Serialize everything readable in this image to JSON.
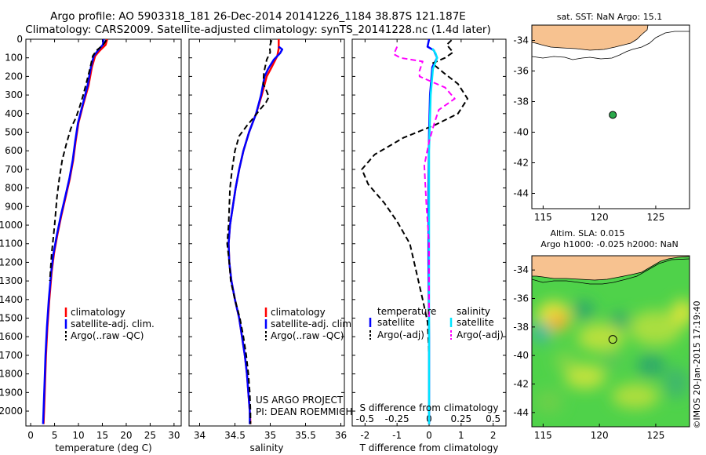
{
  "header": {
    "title_line1": "Argo profile: AO 5903318_181 26-Dec-2014 20141226_1184 38.87S 121.187E",
    "title_line2": "Climatology: CARS2009. Satellite-adjusted climatology: synTS_20141228.nc (1.4d later)"
  },
  "credit": "©IMOS 20-Jan-2015 17:19:40",
  "colors": {
    "climatology": "#ff0000",
    "satellite": "#0000ff",
    "argo": "#000000",
    "salinity_satellite": "#00e5ff",
    "salinity_argo": "#ff00ff",
    "land": "#f7c290",
    "argo_dot": "#2aa84a"
  },
  "chart_data": [
    {
      "type": "line",
      "panel": "temperature",
      "xlabel": "temperature (deg C)",
      "ylabel": "",
      "xlim": [
        -1,
        31.5
      ],
      "ylim": [
        2080,
        0
      ],
      "xticks": [
        0,
        5,
        10,
        15,
        20,
        25,
        30
      ],
      "yticks": [
        0,
        100,
        200,
        300,
        400,
        500,
        600,
        700,
        800,
        900,
        1000,
        1100,
        1200,
        1300,
        1400,
        1500,
        1600,
        1700,
        1800,
        1900,
        2000
      ],
      "legend": [
        "climatology",
        "satellite-adj. clim.",
        "Argo(..raw -QC)"
      ],
      "series": [
        {
          "name": "climatology",
          "style": "solid",
          "points": [
            [
              16,
              0
            ],
            [
              15.7,
              30
            ],
            [
              14.5,
              60
            ],
            [
              13.5,
              90
            ],
            [
              12.8,
              150
            ],
            [
              12.1,
              250
            ],
            [
              11,
              350
            ],
            [
              10,
              450
            ],
            [
              9.4,
              550
            ],
            [
              8.9,
              650
            ],
            [
              8.2,
              750
            ],
            [
              7.3,
              850
            ],
            [
              6.4,
              950
            ],
            [
              5.6,
              1050
            ],
            [
              4.9,
              1150
            ],
            [
              4.4,
              1250
            ],
            [
              3.9,
              1400
            ],
            [
              3.5,
              1550
            ],
            [
              3.2,
              1700
            ],
            [
              3,
              1850
            ],
            [
              2.8,
              2000
            ],
            [
              2.7,
              2070
            ]
          ]
        },
        {
          "name": "satellite-adj. clim.",
          "style": "solid",
          "points": [
            [
              15.3,
              0
            ],
            [
              15.1,
              30
            ],
            [
              14.1,
              60
            ],
            [
              13.2,
              90
            ],
            [
              12.6,
              150
            ],
            [
              11.9,
              250
            ],
            [
              10.9,
              350
            ],
            [
              9.9,
              450
            ],
            [
              9.3,
              550
            ],
            [
              8.8,
              650
            ],
            [
              8.1,
              750
            ],
            [
              7.2,
              850
            ],
            [
              6.3,
              950
            ],
            [
              5.5,
              1050
            ],
            [
              4.8,
              1150
            ],
            [
              4.3,
              1250
            ],
            [
              3.8,
              1400
            ],
            [
              3.4,
              1550
            ],
            [
              3.1,
              1700
            ],
            [
              2.9,
              1850
            ],
            [
              2.7,
              2000
            ],
            [
              2.6,
              2070
            ]
          ]
        },
        {
          "name": "Argo(..raw -QC)",
          "style": "dashed",
          "points": [
            [
              15.8,
              5
            ],
            [
              15.2,
              30
            ],
            [
              13.8,
              60
            ],
            [
              13,
              90
            ],
            [
              12.4,
              160
            ],
            [
              11.6,
              240
            ],
            [
              11,
              300
            ],
            [
              10.3,
              360
            ],
            [
              9.5,
              420
            ],
            [
              8.4,
              480
            ],
            [
              7.5,
              560
            ],
            [
              6.6,
              650
            ],
            [
              6,
              750
            ],
            [
              5.5,
              850
            ],
            [
              5,
              1000
            ],
            [
              4.4,
              1150
            ],
            [
              4,
              1300
            ]
          ]
        }
      ]
    },
    {
      "type": "line",
      "panel": "salinity",
      "xlabel": "salinity",
      "ylabel": "",
      "xlim": [
        33.85,
        36.05
      ],
      "ylim": [
        2080,
        0
      ],
      "xticks": [
        34,
        34.5,
        35,
        35.5,
        36
      ],
      "legend": [
        "climatology",
        "satellite-adj. clim.",
        "Argo(..raw -QC)"
      ],
      "annotation": [
        "US ARGO PROJECT",
        "PI: DEAN ROEMMICH"
      ],
      "series": [
        {
          "name": "climatology",
          "style": "solid",
          "points": [
            [
              35.12,
              0
            ],
            [
              35.12,
              50
            ],
            [
              35.1,
              90
            ],
            [
              35.02,
              150
            ],
            [
              34.95,
              200
            ],
            [
              34.88,
              300
            ],
            [
              34.8,
              400
            ],
            [
              34.7,
              500
            ],
            [
              34.62,
              600
            ],
            [
              34.56,
              700
            ],
            [
              34.51,
              800
            ],
            [
              34.47,
              900
            ],
            [
              34.43,
              1000
            ],
            [
              34.41,
              1100
            ],
            [
              34.42,
              1200
            ],
            [
              34.45,
              1300
            ],
            [
              34.5,
              1400
            ],
            [
              34.56,
              1500
            ],
            [
              34.6,
              1600
            ],
            [
              34.64,
              1700
            ],
            [
              34.67,
              1800
            ],
            [
              34.69,
              1900
            ],
            [
              34.71,
              2000
            ],
            [
              34.72,
              2070
            ]
          ]
        },
        {
          "name": "satellite-adj. clim.",
          "style": "solid",
          "points": [
            [
              35.12,
              40
            ],
            [
              35.17,
              55
            ],
            [
              35.14,
              75
            ],
            [
              35.05,
              110
            ],
            [
              34.97,
              160
            ],
            [
              34.92,
              200
            ],
            [
              34.87,
              300
            ],
            [
              34.8,
              400
            ],
            [
              34.7,
              500
            ],
            [
              34.62,
              600
            ],
            [
              34.56,
              700
            ],
            [
              34.51,
              800
            ],
            [
              34.47,
              900
            ],
            [
              34.43,
              1000
            ],
            [
              34.41,
              1100
            ],
            [
              34.42,
              1200
            ],
            [
              34.45,
              1300
            ],
            [
              34.5,
              1400
            ],
            [
              34.56,
              1500
            ],
            [
              34.6,
              1600
            ],
            [
              34.64,
              1700
            ],
            [
              34.67,
              1800
            ],
            [
              34.69,
              1900
            ],
            [
              34.71,
              2000
            ],
            [
              34.71,
              2070
            ]
          ]
        },
        {
          "name": "Argo(..raw -QC)",
          "style": "dashed",
          "points": [
            [
              35.02,
              5
            ],
            [
              34.99,
              40
            ],
            [
              35,
              70
            ],
            [
              34.95,
              110
            ],
            [
              34.91,
              180
            ],
            [
              34.9,
              240
            ],
            [
              34.95,
              280
            ],
            [
              34.98,
              310
            ],
            [
              34.94,
              340
            ],
            [
              34.85,
              380
            ],
            [
              34.77,
              420
            ],
            [
              34.68,
              460
            ],
            [
              34.56,
              520
            ],
            [
              34.5,
              600
            ],
            [
              34.46,
              700
            ],
            [
              34.43,
              800
            ],
            [
              34.42,
              900
            ],
            [
              34.41,
              1000
            ],
            [
              34.39,
              1100
            ],
            [
              34.42,
              1200
            ],
            [
              34.44,
              1300
            ],
            [
              34.5,
              1400
            ],
            [
              34.57,
              1500
            ],
            [
              34.62,
              1600
            ],
            [
              34.66,
              1700
            ],
            [
              34.69,
              1800
            ],
            [
              34.71,
              1900
            ],
            [
              34.72,
              2000
            ],
            [
              34.72,
              2070
            ]
          ]
        }
      ]
    },
    {
      "type": "line",
      "panel": "difference",
      "xlabel": "T difference from climatology",
      "xlabel_top": "S difference from climatology",
      "xlim": [
        -2.4,
        2.4
      ],
      "ylim": [
        2080,
        0
      ],
      "xticks": [
        -2,
        -1,
        0,
        1,
        2
      ],
      "xticks_top": [
        "-0.5",
        "-0.25",
        "0",
        "0.25",
        "0.5"
      ],
      "legend_temperature": [
        "temperature",
        "satellite",
        "Argo(-adj)"
      ],
      "legend_salinity": [
        "salinity",
        "satellite",
        "Argo(-adj)"
      ],
      "series": [
        {
          "name": "temperature satellite",
          "style": "solid",
          "points": [
            [
              0,
              0
            ],
            [
              -0.05,
              40
            ],
            [
              0.15,
              60
            ],
            [
              0.25,
              100
            ],
            [
              0.1,
              150
            ],
            [
              0.03,
              300
            ],
            [
              0,
              500
            ],
            [
              -0.02,
              800
            ],
            [
              -0.02,
              1200
            ],
            [
              0,
              1600
            ],
            [
              0,
              2070
            ]
          ]
        },
        {
          "name": "temperature Argo(-adj)",
          "style": "dashed",
          "points": [
            [
              0.7,
              5
            ],
            [
              0.55,
              30
            ],
            [
              0.75,
              70
            ],
            [
              0.5,
              100
            ],
            [
              0.1,
              130
            ],
            [
              0.45,
              180
            ],
            [
              0.9,
              240
            ],
            [
              1.2,
              320
            ],
            [
              0.9,
              400
            ],
            [
              0.2,
              460
            ],
            [
              -0.8,
              530
            ],
            [
              -1.7,
              620
            ],
            [
              -2.1,
              700
            ],
            [
              -1.9,
              780
            ],
            [
              -1.4,
              880
            ],
            [
              -1,
              980
            ],
            [
              -0.6,
              1100
            ],
            [
              -0.4,
              1250
            ],
            [
              -0.2,
              1400
            ],
            [
              -0.05,
              1520
            ],
            [
              0,
              1700
            ]
          ]
        },
        {
          "name": "salinity satellite",
          "style": "solid",
          "points": [
            [
              0.1,
              50
            ],
            [
              0.2,
              75
            ],
            [
              0.25,
              100
            ],
            [
              0.12,
              160
            ],
            [
              0.05,
              300
            ],
            [
              0,
              600
            ],
            [
              0,
              1000
            ],
            [
              0,
              1500
            ],
            [
              0,
              2070
            ]
          ]
        },
        {
          "name": "salinity Argo(-adj)",
          "style": "dashed",
          "points": [
            [
              -1,
              40
            ],
            [
              -1.1,
              80
            ],
            [
              -0.9,
              100
            ],
            [
              -0.2,
              120
            ],
            [
              -0.3,
              170
            ],
            [
              -0.3,
              200
            ],
            [
              0.5,
              260
            ],
            [
              0.8,
              320
            ],
            [
              0.3,
              380
            ],
            [
              0.15,
              460
            ],
            [
              0,
              550
            ],
            [
              -0.15,
              680
            ],
            [
              -0.08,
              900
            ],
            [
              0,
              1100
            ],
            [
              0,
              1300
            ],
            [
              0,
              1500
            ]
          ]
        }
      ]
    },
    {
      "type": "scatter",
      "panel": "map-sst",
      "title": "sat. SST: NaN Argo: 15.1",
      "xlim": [
        114,
        128
      ],
      "ylim": [
        -45,
        -33
      ],
      "xticks": [
        115,
        120,
        125
      ],
      "yticks": [
        -34,
        -36,
        -38,
        -40,
        -42,
        -44
      ],
      "points": [
        {
          "x": 121.187,
          "y": -38.87
        }
      ]
    },
    {
      "type": "heatmap",
      "panel": "map-sla",
      "title_line1": "Altim. SLA: 0.015",
      "title_line2": "Argo h1000: -0.025 h2000: NaN",
      "xlim": [
        114,
        128
      ],
      "ylim": [
        -45,
        -33
      ],
      "xticks": [
        115,
        120,
        125
      ],
      "yticks": [
        -34,
        -36,
        -38,
        -40,
        -42,
        -44
      ],
      "points": [
        {
          "x": 121.187,
          "y": -38.87
        }
      ]
    }
  ]
}
